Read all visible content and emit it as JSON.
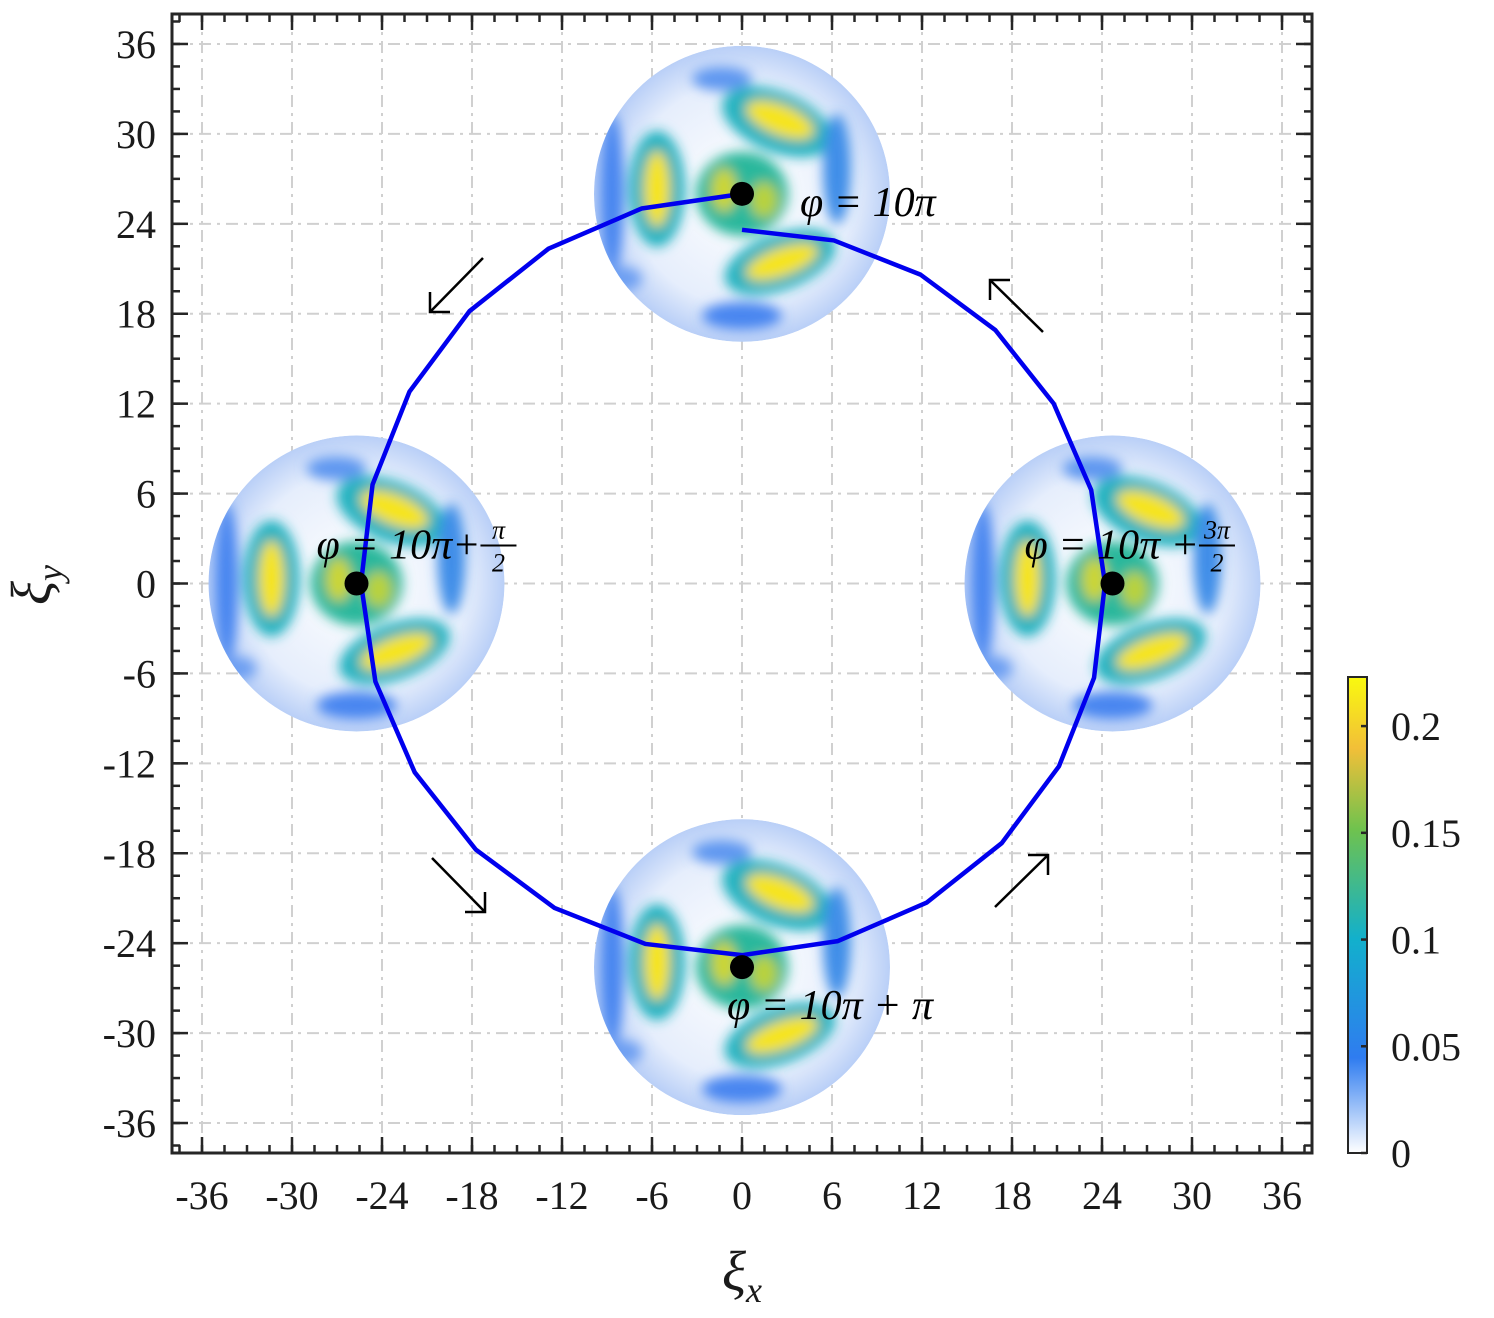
{
  "chart_data": {
    "type": "line",
    "xlim": [
      -38,
      38
    ],
    "ylim": [
      -38,
      38
    ],
    "xticks": [
      -36,
      -30,
      -24,
      -18,
      -12,
      -6,
      0,
      6,
      12,
      18,
      24,
      30,
      36
    ],
    "yticks": [
      -36,
      -30,
      -24,
      -18,
      -12,
      -6,
      0,
      6,
      12,
      18,
      24,
      30,
      36
    ],
    "grid": true,
    "x_label": {
      "symbol": "ξ",
      "sub": "x"
    },
    "y_label": {
      "symbol": "ξ",
      "sub": "y"
    },
    "series": [
      {
        "color": "#0000ee",
        "x": [
          0,
          -6.7,
          -12.9,
          -18.17,
          -22.17,
          -24.63,
          -25.4,
          -24.44,
          -21.82,
          -17.75,
          -12.5,
          -6.44,
          0,
          6.39,
          12.3,
          17.32,
          21.13,
          23.47,
          24.2,
          23.28,
          20.78,
          16.9,
          11.9,
          6.13,
          0
        ],
        "y": [
          26,
          25.02,
          22.34,
          18.17,
          12.8,
          6.6,
          0,
          -6.55,
          -12.6,
          -17.75,
          -21.65,
          -24.05,
          -24.8,
          -23.86,
          -21.3,
          -17.32,
          -12.2,
          -6.29,
          0,
          6.24,
          12,
          16.9,
          20.61,
          22.89,
          23.6
        ]
      }
    ],
    "points": {
      "color": "#000000",
      "x": [
        0,
        -25.7,
        0,
        24.7
      ],
      "y": [
        26,
        0,
        -25.6,
        0
      ],
      "labels": [
        {
          "text": "φ = 10π"
        },
        {
          "text": "φ = 10π+",
          "num": "π",
          "den": "2"
        },
        {
          "text": "φ = 10π + π"
        },
        {
          "text": "φ = 10π + ",
          "num": "3π",
          "den": "2"
        }
      ]
    },
    "colorbar": {
      "colormap": "parula",
      "clim": [
        0,
        0.223
      ],
      "ticks": [
        0,
        0.05,
        0.1,
        0.15,
        0.2
      ]
    }
  }
}
